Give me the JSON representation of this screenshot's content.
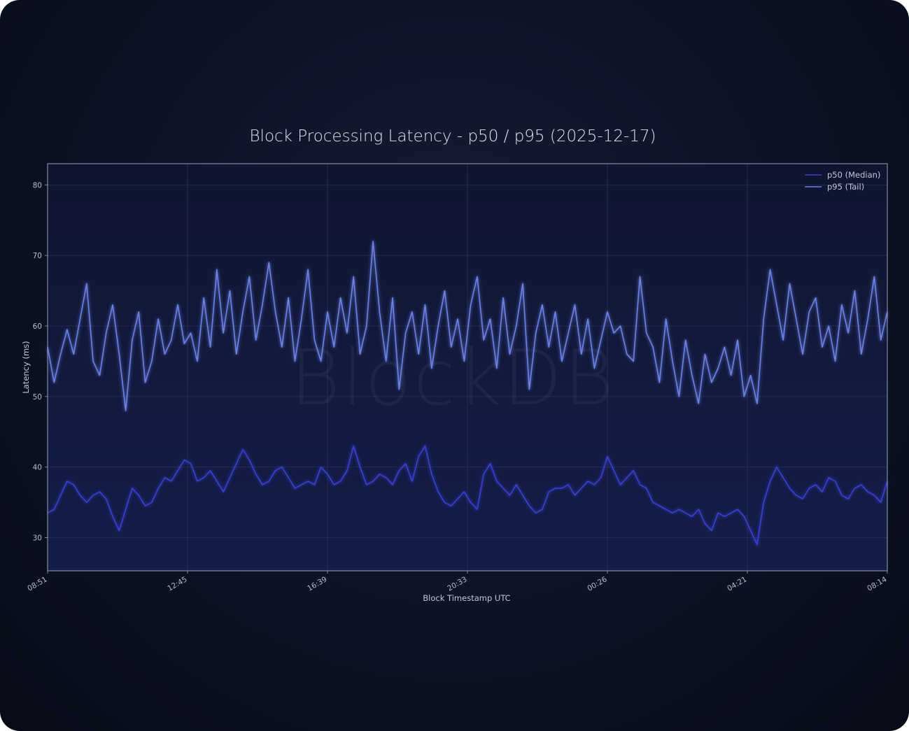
{
  "colors": {
    "p50": "#3a3fd2",
    "p95": "#6c82e6",
    "plot_bg_top": "#0f1530",
    "plot_bg_bottom": "#141d4a",
    "plot_border": "#9aa0b8",
    "grid": "#2a3256"
  },
  "watermark": "BlockDB",
  "chart_data": {
    "type": "line",
    "title": "Block Processing Latency - p50 / p95 (2025-12-17)",
    "xlabel": "Block Timestamp UTC",
    "ylabel": "Latency (ms)",
    "ylim": [
      25.3,
      83
    ],
    "yticks": [
      30,
      40,
      50,
      60,
      70,
      80
    ],
    "xlim": [
      0,
      1
    ],
    "xticks": [
      {
        "label": "08:51",
        "pos": 0
      },
      {
        "label": "12:45",
        "pos": 0.1667
      },
      {
        "label": "16:39",
        "pos": 0.3333
      },
      {
        "label": "20:33",
        "pos": 0.5
      },
      {
        "label": "00:26",
        "pos": 0.6667
      },
      {
        "label": "04:21",
        "pos": 0.8333
      },
      {
        "label": "08:14",
        "pos": 1
      }
    ],
    "grid": true,
    "legend_position": "top-right",
    "series": [
      {
        "name": "p50 (Median)",
        "color": "#3a3fd2",
        "values": [
          33.5,
          34.0,
          36.0,
          38.0,
          37.5,
          36.0,
          35.0,
          36.0,
          36.5,
          35.5,
          33.0,
          31.0,
          34.0,
          37.0,
          36.0,
          34.5,
          35.0,
          37.0,
          38.5,
          38.0,
          39.5,
          41.0,
          40.5,
          38.0,
          38.5,
          39.5,
          38.0,
          36.5,
          38.5,
          40.5,
          42.5,
          41.0,
          39.0,
          37.5,
          38.0,
          39.5,
          40.0,
          38.5,
          37.0,
          37.5,
          38.0,
          37.5,
          40.0,
          39.0,
          37.5,
          38.0,
          39.5,
          43.0,
          40.0,
          37.5,
          38.0,
          39.0,
          38.5,
          37.5,
          39.5,
          40.5,
          38.0,
          41.5,
          43.0,
          39.0,
          36.5,
          35.0,
          34.5,
          35.5,
          36.5,
          35.0,
          34.0,
          39.0,
          40.5,
          38.0,
          37.0,
          36.0,
          37.5,
          36.0,
          34.5,
          33.5,
          34.0,
          36.5,
          37.0,
          37.0,
          37.5,
          36.0,
          37.0,
          38.0,
          37.5,
          38.5,
          41.5,
          39.5,
          37.5,
          38.5,
          39.5,
          37.5,
          37.0,
          35.0,
          34.5,
          34.0,
          33.5,
          34.0,
          33.5,
          33.0,
          34.0,
          32.0,
          31.0,
          33.5,
          33.0,
          33.5,
          34.0,
          33.0,
          31.0,
          29.0,
          35.0,
          38.0,
          40.0,
          38.5,
          37.0,
          36.0,
          35.5,
          37.0,
          37.5,
          36.5,
          38.5,
          38.0,
          36.0,
          35.5,
          37.0,
          37.5,
          36.5,
          36.0,
          35.0,
          38.0
        ]
      },
      {
        "name": "p95 (Tail)",
        "color": "#6c82e6",
        "values": [
          57.0,
          52.0,
          56.0,
          59.5,
          56.0,
          61.0,
          66.0,
          55.0,
          53.0,
          59.0,
          63.0,
          56.0,
          48.0,
          58.0,
          62.0,
          52.0,
          55.0,
          61.0,
          56.0,
          58.0,
          63.0,
          57.5,
          59.0,
          55.0,
          64.0,
          57.0,
          68.0,
          59.0,
          65.0,
          56.0,
          62.0,
          67.0,
          58.0,
          63.0,
          69.0,
          62.0,
          57.0,
          64.0,
          55.0,
          61.0,
          68.0,
          58.0,
          55.0,
          62.0,
          57.0,
          64.0,
          59.0,
          67.0,
          56.0,
          60.0,
          72.0,
          62.0,
          55.0,
          64.0,
          51.0,
          59.0,
          62.0,
          56.0,
          63.0,
          54.0,
          60.0,
          65.0,
          57.0,
          61.0,
          55.0,
          63.0,
          67.0,
          58.0,
          61.0,
          54.0,
          64.0,
          56.0,
          60.0,
          66.0,
          51.0,
          59.0,
          63.0,
          57.0,
          62.0,
          55.0,
          59.0,
          63.0,
          56.0,
          61.0,
          54.0,
          58.0,
          62.0,
          59.0,
          60.0,
          56.0,
          55.0,
          67.0,
          59.0,
          57.0,
          52.0,
          61.0,
          55.0,
          50.0,
          58.0,
          53.0,
          49.0,
          56.0,
          52.0,
          54.0,
          57.0,
          53.0,
          58.0,
          50.0,
          53.0,
          49.0,
          61.0,
          68.0,
          63.0,
          58.0,
          66.0,
          61.0,
          56.0,
          62.0,
          64.0,
          57.0,
          60.0,
          55.0,
          63.0,
          59.0,
          65.0,
          56.0,
          61.0,
          67.0,
          58.0,
          62.0
        ]
      }
    ]
  }
}
